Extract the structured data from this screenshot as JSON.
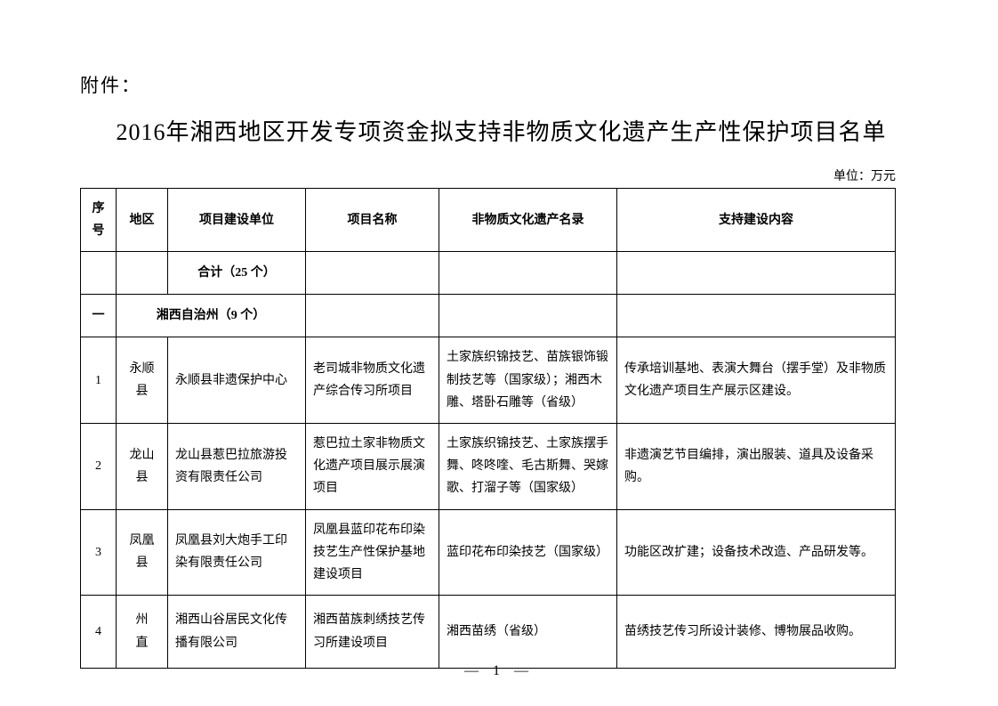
{
  "attachment": "附件：",
  "title": "2016年湘西地区开发专项资金拟支持非物质文化遗产生产性保护项目名单",
  "unit": "单位：万元",
  "headers": {
    "seq": "序号",
    "region": "地区",
    "build_unit": "项目建设单位",
    "project_name": "项目名称",
    "heritage": "非物质文化遗产名录",
    "content": "支持建设内容"
  },
  "total_row": {
    "label": "合计（25 个）"
  },
  "section_row": {
    "seq": "一",
    "label": "湘西自治州（9 个）"
  },
  "rows": [
    {
      "seq": "1",
      "region": "永顺县",
      "build_unit": "永顺县非遗保护中心",
      "project_name": "老司城非物质文化遗产综合传习所项目",
      "heritage": "土家族织锦技艺、苗族银饰锻制技艺等（国家级）；湘西木雕、塔卧石雕等（省级）",
      "content": "传承培训基地、表演大舞台（摆手堂）及非物质文化遗产项目生产展示区建设。"
    },
    {
      "seq": "2",
      "region": "龙山县",
      "build_unit": "龙山县惹巴拉旅游投资有限责任公司",
      "project_name": "惹巴拉土家非物质文化遗产项目展示展演项目",
      "heritage": "土家族织锦技艺、土家族摆手舞、咚咚喹、毛古斯舞、哭嫁歌、打溜子等（国家级）",
      "content": "非遗演艺节目编排，演出服装、道具及设备采购。"
    },
    {
      "seq": "3",
      "region": "凤凰县",
      "build_unit": "凤凰县刘大炮手工印染有限责任公司",
      "project_name": "凤凰县蓝印花布印染技艺生产性保护基地建设项目",
      "heritage": "蓝印花布印染技艺（国家级）",
      "content": "功能区改扩建；设备技术改造、产品研发等。"
    },
    {
      "seq": "4",
      "region": "州　直",
      "build_unit": "湘西山谷居民文化传播有限公司",
      "project_name": "湘西苗族刺绣技艺传习所建设项目",
      "heritage": "湘西苗绣（省级）",
      "content": "苗绣技艺传习所设计装修、博物展品收购。"
    }
  ],
  "page_number": "— 1 —"
}
